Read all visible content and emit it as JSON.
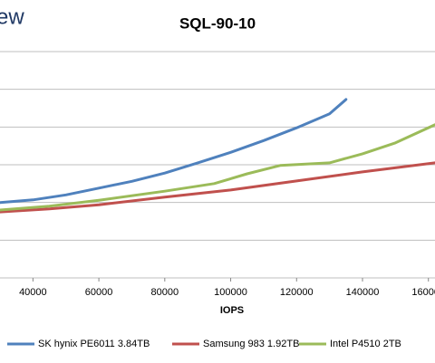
{
  "chart_data": {
    "type": "line",
    "watermark": "ew",
    "title": "SQL-90-10",
    "x_label": "IOPS",
    "xlim": [
      30000,
      162000
    ],
    "xticks": [
      40000,
      60000,
      80000,
      100000,
      120000,
      140000,
      160000
    ],
    "ylim": [
      0,
      6
    ],
    "ygrid": [
      0,
      1,
      2,
      3,
      4,
      5,
      6
    ],
    "grid": true,
    "legend": "bottom",
    "series": [
      {
        "name": "SK hynix PE6011 3.84TB",
        "color": "#4f81bd",
        "x": [
          30000,
          40000,
          50000,
          60000,
          70000,
          80000,
          90000,
          100000,
          110000,
          120000,
          130000,
          135000
        ],
        "values": [
          2.0,
          2.07,
          2.2,
          2.38,
          2.56,
          2.78,
          3.05,
          3.33,
          3.64,
          3.98,
          4.35,
          4.73
        ]
      },
      {
        "name": "Samsung 983 1.92TB",
        "color": "#c0504d",
        "x": [
          30000,
          45000,
          60000,
          80000,
          100000,
          120000,
          140000,
          162000
        ],
        "values": [
          1.75,
          1.83,
          1.94,
          2.14,
          2.33,
          2.57,
          2.81,
          3.05
        ]
      },
      {
        "name": "Intel P4510 2TB",
        "color": "#9bbb59",
        "x": [
          30000,
          45000,
          60000,
          80000,
          95000,
          105000,
          115000,
          130000,
          140000,
          150000,
          162000
        ],
        "values": [
          1.8,
          1.9,
          2.06,
          2.3,
          2.5,
          2.76,
          2.98,
          3.05,
          3.29,
          3.58,
          4.06
        ]
      }
    ]
  }
}
